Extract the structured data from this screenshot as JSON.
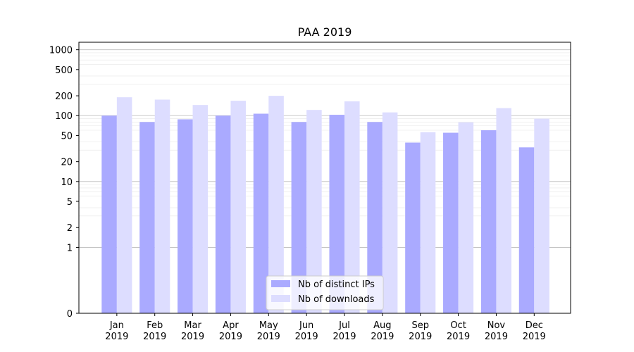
{
  "chart_data": {
    "type": "bar",
    "title": "PAA 2019",
    "xlabel": "",
    "ylabel": "",
    "yscale": "symlog",
    "ylim": [
      0,
      1300
    ],
    "yticks": [
      0,
      1,
      2,
      5,
      10,
      20,
      50,
      100,
      200,
      500,
      1000
    ],
    "grid": true,
    "legend_position": "bottom-center",
    "categories": [
      [
        "Jan",
        "2019"
      ],
      [
        "Feb",
        "2019"
      ],
      [
        "Mar",
        "2019"
      ],
      [
        "Apr",
        "2019"
      ],
      [
        "May",
        "2019"
      ],
      [
        "Jun",
        "2019"
      ],
      [
        "Jul",
        "2019"
      ],
      [
        "Aug",
        "2019"
      ],
      [
        "Sep",
        "2019"
      ],
      [
        "Oct",
        "2019"
      ],
      [
        "Nov",
        "2019"
      ],
      [
        "Dec",
        "2019"
      ]
    ],
    "series": [
      {
        "name": "Nb of distinct IPs",
        "color": "#aaaaff",
        "values": [
          100,
          80,
          88,
          100,
          107,
          80,
          103,
          80,
          39,
          55,
          60,
          33
        ]
      },
      {
        "name": "Nb of downloads",
        "color": "#ddddff",
        "values": [
          190,
          175,
          145,
          168,
          200,
          122,
          165,
          112,
          56,
          79,
          130,
          90
        ]
      }
    ]
  }
}
